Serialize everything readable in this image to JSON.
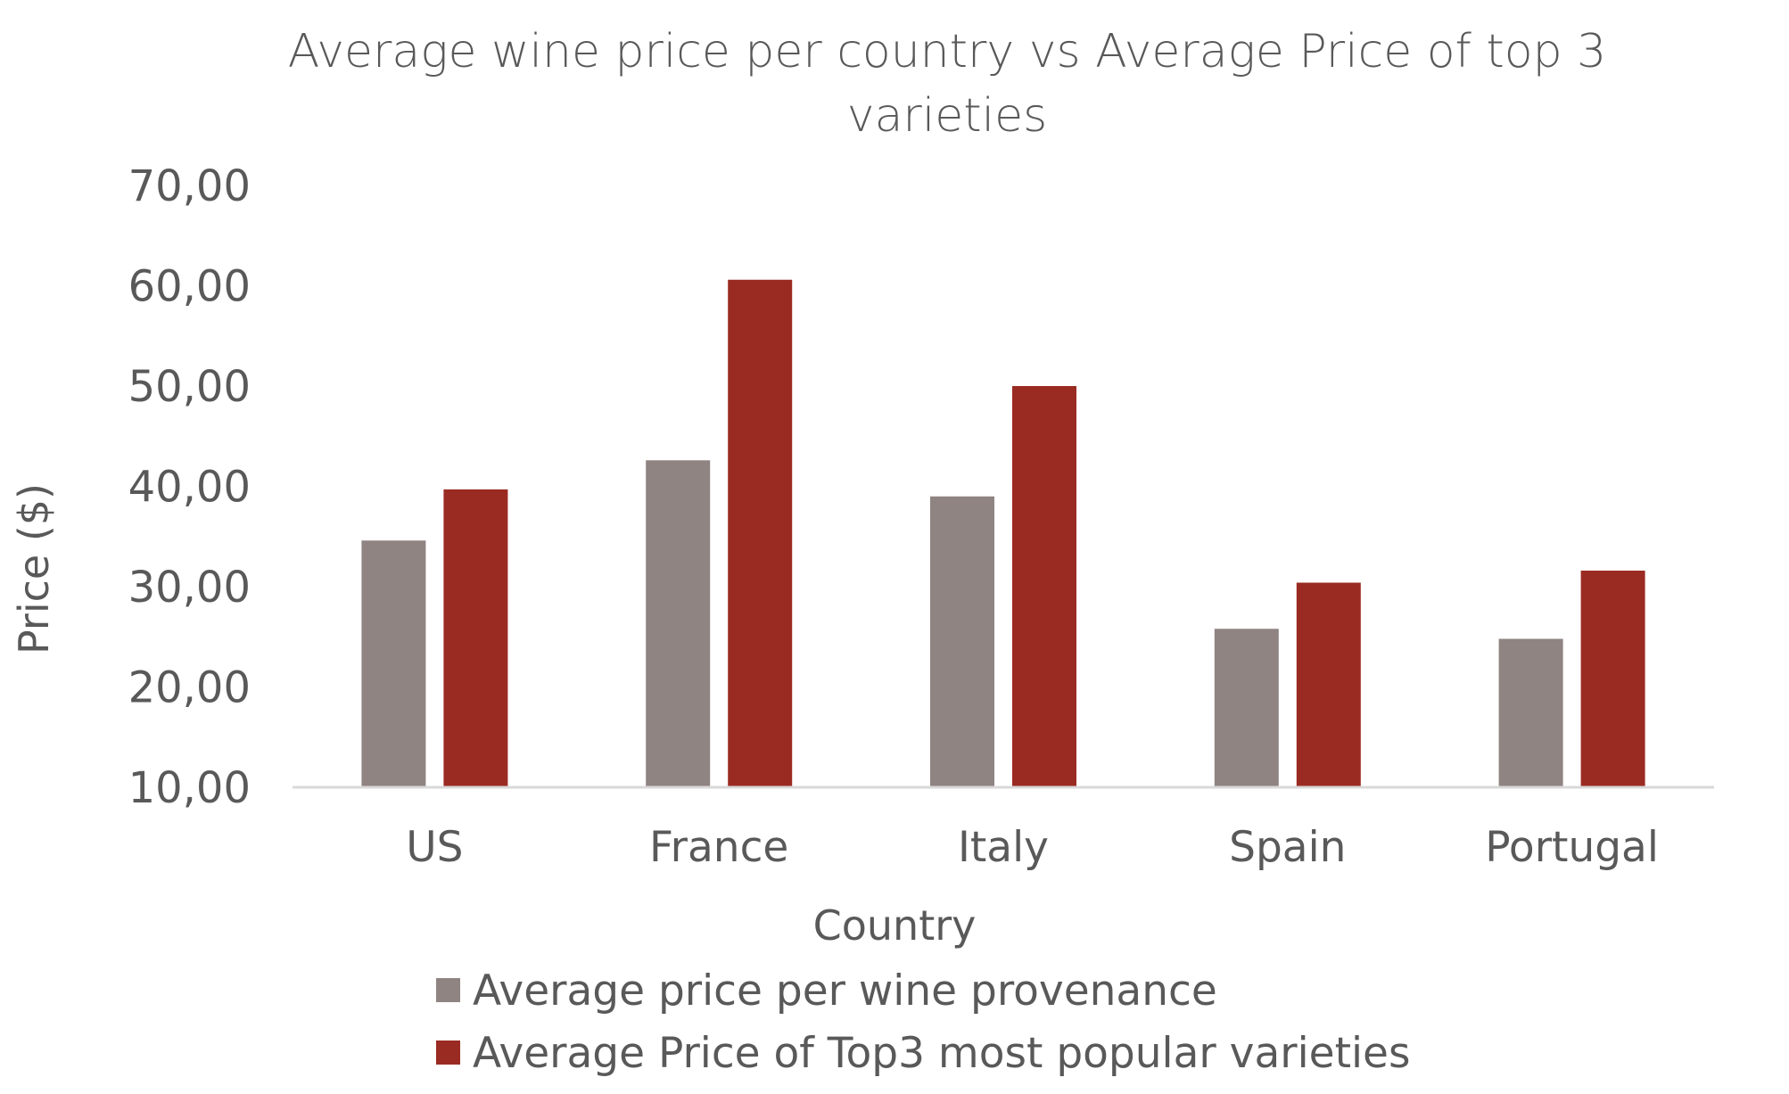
{
  "chart_data": {
    "type": "bar",
    "title_lines": [
      "Average wine price per country vs Average Price of top 3",
      "varieties"
    ],
    "xlabel": "Country",
    "ylabel": "Price ($)",
    "categories": [
      "US",
      "France",
      "Italy",
      "Spain",
      "Portugal"
    ],
    "series": [
      {
        "name": "Average price per wine provenance",
        "color": "#8f8482",
        "values": [
          34.6,
          42.6,
          39.0,
          25.8,
          24.8
        ]
      },
      {
        "name": "Average Price of Top3 most popular varieties",
        "color": "#9a2b22",
        "values": [
          39.7,
          60.6,
          50.0,
          30.4,
          31.6
        ]
      }
    ],
    "ylim": [
      10,
      70
    ],
    "yticks": [
      "10,00",
      "20,00",
      "30,00",
      "40,00",
      "50,00",
      "60,00",
      "70,00"
    ],
    "grid": false,
    "legend_position": "bottom"
  }
}
